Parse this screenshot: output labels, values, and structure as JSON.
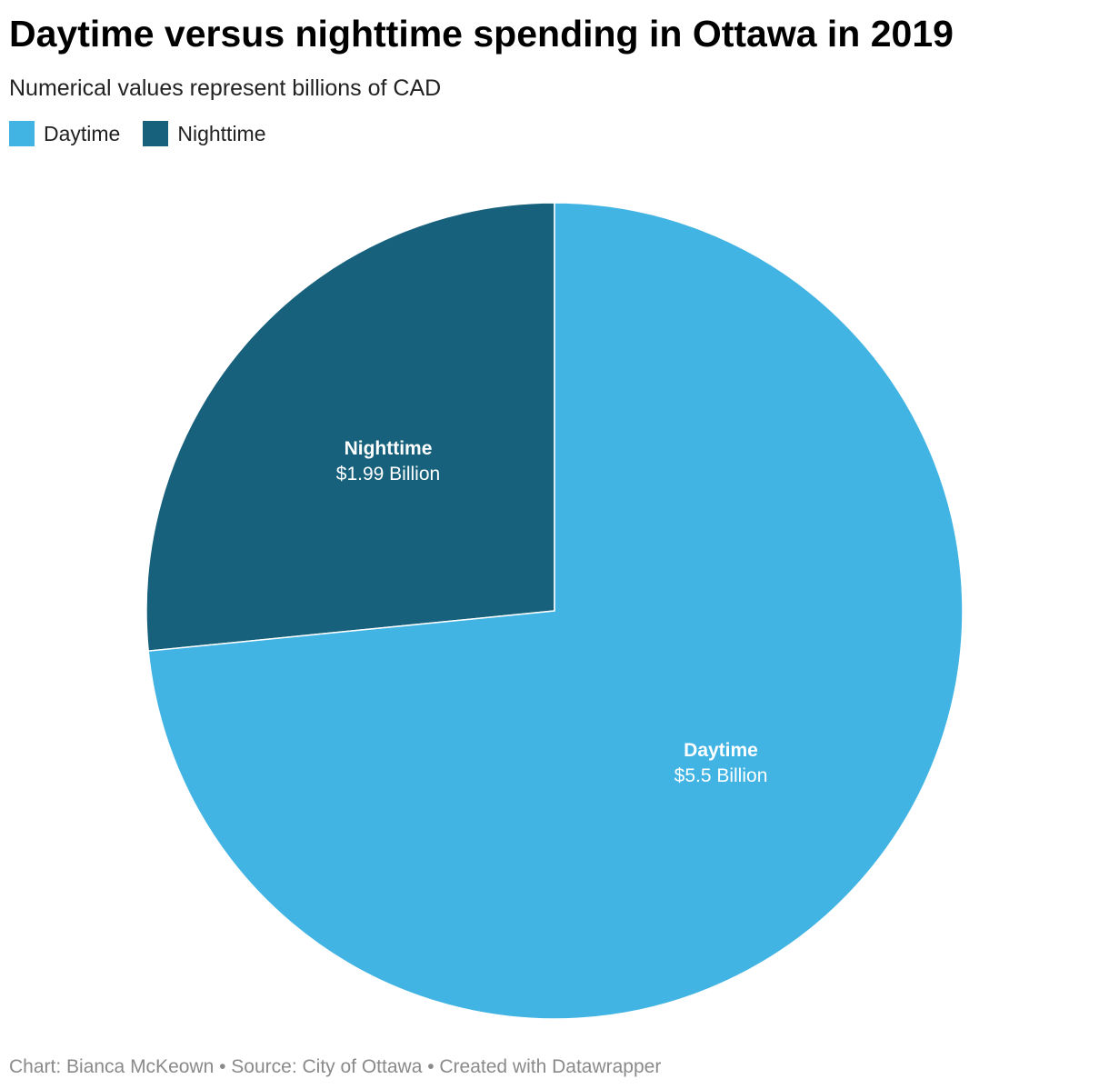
{
  "header": {
    "title": "Daytime versus nighttime spending in Ottawa in 2019",
    "subtitle": "Numerical values represent billions of CAD"
  },
  "legend": {
    "items": [
      {
        "label": "Daytime",
        "color": "#42b4e4"
      },
      {
        "label": "Nighttime",
        "color": "#17617c"
      }
    ]
  },
  "chart_data": {
    "type": "pie",
    "categories": [
      "Nighttime",
      "Daytime"
    ],
    "values": [
      1.99,
      5.5
    ],
    "value_labels": [
      "$1.99 Billion",
      "$5.5 Billion"
    ],
    "colors": [
      "#17617c",
      "#42b4e4"
    ],
    "title": "Daytime versus nighttime spending in Ottawa in 2019",
    "subtitle": "Numerical values represent billions of CAD",
    "legend_position": "top-left"
  },
  "footer": {
    "credit": "Chart: Bianca McKeown • Source: City of Ottawa • Created with Datawrapper"
  }
}
